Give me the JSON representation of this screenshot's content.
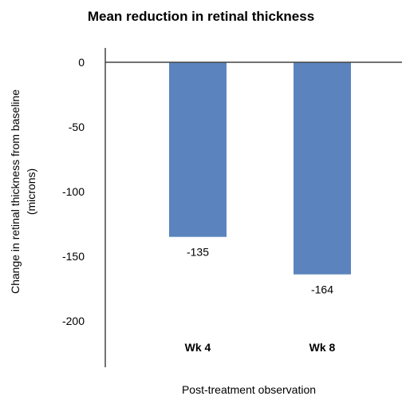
{
  "chart_data": {
    "type": "bar",
    "title": "Mean reduction in retinal thickness",
    "xlabel": "Post-treatment observation",
    "ylabel_lines": [
      "Change in retinal thickness from baseline",
      "(microns)"
    ],
    "categories": [
      "Wk 4",
      "Wk 8"
    ],
    "values": [
      -135,
      -164
    ],
    "data_labels": [
      "-135",
      "-164"
    ],
    "yticks": [
      0,
      -50,
      -100,
      -150,
      -200
    ],
    "ylim": [
      -230,
      0
    ],
    "bar_color": "#5b84be",
    "grid": false
  }
}
